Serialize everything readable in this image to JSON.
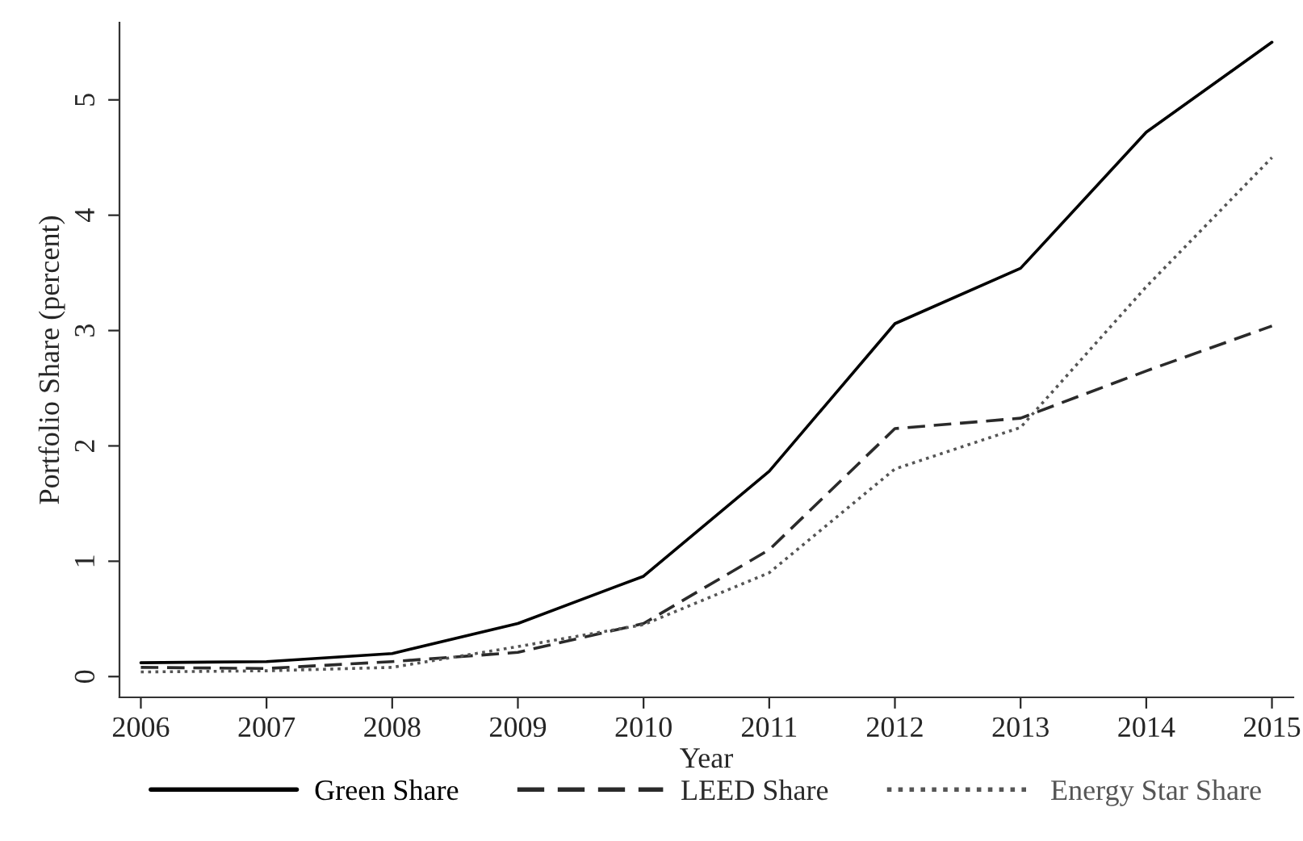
{
  "chart_data": {
    "type": "line",
    "xlabel": "Year",
    "ylabel": "Portfolio Share (percent)",
    "x": [
      2006,
      2007,
      2008,
      2009,
      2010,
      2011,
      2012,
      2013,
      2014,
      2015
    ],
    "series": [
      {
        "name": "Green Share",
        "color": "#000000",
        "line_style": "solid",
        "values": [
          0.12,
          0.13,
          0.2,
          0.46,
          0.87,
          1.78,
          3.06,
          3.54,
          4.72,
          5.5
        ]
      },
      {
        "name": "LEED Share",
        "color": "#2a2a2a",
        "line_style": "dashed",
        "values": [
          0.08,
          0.07,
          0.13,
          0.21,
          0.46,
          1.1,
          2.15,
          2.24,
          2.65,
          3.04
        ]
      },
      {
        "name": "Energy Star Share",
        "color": "#555555",
        "line_style": "dotted",
        "values": [
          0.04,
          0.05,
          0.08,
          0.26,
          0.45,
          0.9,
          1.8,
          2.16,
          3.38,
          4.5
        ]
      }
    ],
    "xlim": [
      2005.83,
      2015.17
    ],
    "ylim": [
      -0.18,
      5.67
    ],
    "xticks": [
      2006,
      2007,
      2008,
      2009,
      2010,
      2011,
      2012,
      2013,
      2014,
      2015
    ],
    "yticks": [
      0,
      1,
      2,
      3,
      4,
      5
    ],
    "grid": false,
    "legend": "bottom",
    "marker": "none"
  }
}
